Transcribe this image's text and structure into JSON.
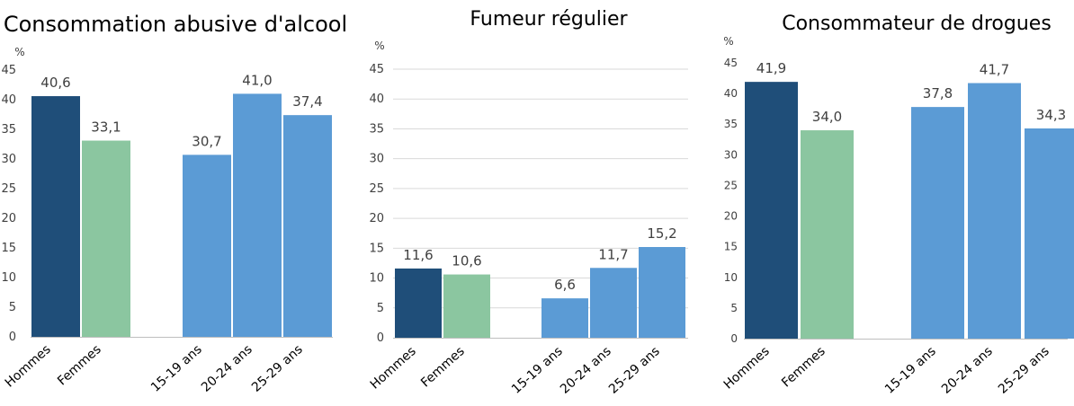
{
  "colors": {
    "hommes": "#1f4e79",
    "femmes": "#8bc6a0",
    "age": "#5b9bd5",
    "grid": "#d9d9d9",
    "axis": "#bfbfbf"
  },
  "chart_data": [
    {
      "type": "bar",
      "title": "Consommation abusive d'alcool",
      "ylabel": "%",
      "ylim": [
        0,
        45
      ],
      "yticks": [
        "0",
        "5",
        "10",
        "15",
        "20",
        "25",
        "30",
        "35",
        "40",
        "45"
      ],
      "grid": false,
      "categories": [
        "Hommes",
        "Femmes",
        "15-19 ans",
        "20-24 ans",
        "25-29 ans"
      ],
      "values": [
        40.6,
        33.1,
        30.7,
        41.0,
        37.4
      ],
      "value_labels": [
        "40,6",
        "33,1",
        "30,7",
        "41,0",
        "37,4"
      ],
      "groups": [
        "hommes",
        "femmes",
        "age",
        "age",
        "age"
      ]
    },
    {
      "type": "bar",
      "title": "Fumeur régulier",
      "ylabel": "%",
      "ylim": [
        0,
        45
      ],
      "yticks": [
        "0",
        "5",
        "10",
        "15",
        "20",
        "25",
        "30",
        "35",
        "40",
        "45"
      ],
      "grid": true,
      "categories": [
        "Hommes",
        "Femmes",
        "15-19 ans",
        "20-24 ans",
        "25-29 ans"
      ],
      "values": [
        11.6,
        10.6,
        6.6,
        11.7,
        15.2
      ],
      "value_labels": [
        "11,6",
        "10,6",
        "6,6",
        "11,7",
        "15,2"
      ],
      "groups": [
        "hommes",
        "femmes",
        "age",
        "age",
        "age"
      ]
    },
    {
      "type": "bar",
      "title": "Consommateur de drogues",
      "ylabel": "%",
      "ylim": [
        0,
        45
      ],
      "yticks": [
        "0",
        "5",
        "10",
        "15",
        "20",
        "25",
        "30",
        "35",
        "40",
        "45"
      ],
      "grid": false,
      "categories": [
        "Hommes",
        "Femmes",
        "15-19 ans",
        "20-24 ans",
        "25-29 ans"
      ],
      "values": [
        41.9,
        34.0,
        37.8,
        41.7,
        34.3
      ],
      "value_labels": [
        "41,9",
        "34,0",
        "37,8",
        "41,7",
        "34,3"
      ],
      "groups": [
        "hommes",
        "femmes",
        "age",
        "age",
        "age"
      ]
    }
  ]
}
